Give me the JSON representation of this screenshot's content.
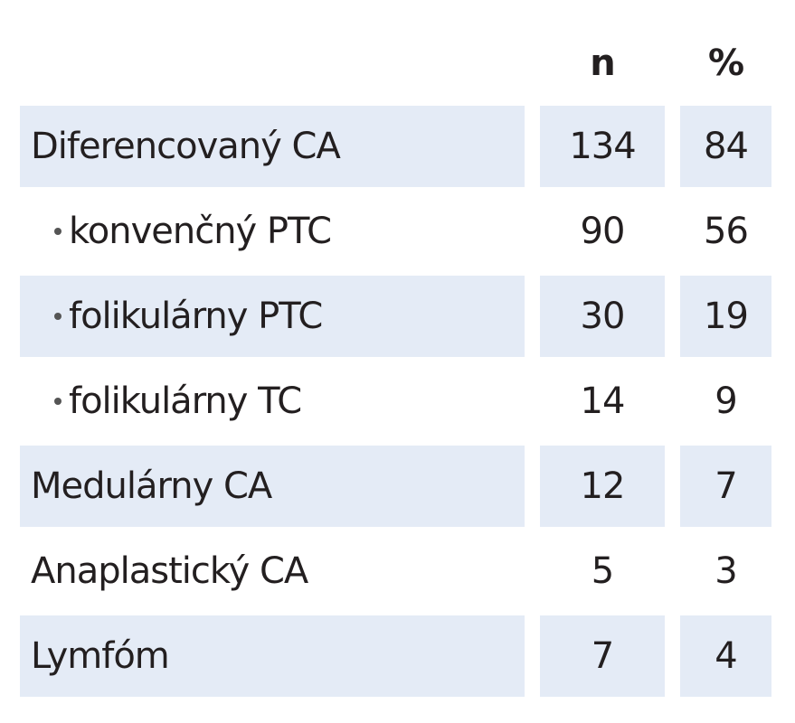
{
  "table": {
    "columns": [
      "n",
      "%"
    ],
    "rows": [
      {
        "label": "Diferencovaný CA",
        "n": 134,
        "percent": 84,
        "indent": false
      },
      {
        "label": "konvenčný PTC",
        "n": 90,
        "percent": 56,
        "indent": true
      },
      {
        "label": "folikulárny PTC",
        "n": 30,
        "percent": 19,
        "indent": true
      },
      {
        "label": "folikulárny TC",
        "n": 14,
        "percent": 9,
        "indent": true
      },
      {
        "label": "Medulárny CA",
        "n": 12,
        "percent": 7,
        "indent": false
      },
      {
        "label": "Anaplastický CA",
        "n": 5,
        "percent": 3,
        "indent": false
      },
      {
        "label": "Lymfóm",
        "n": 7,
        "percent": 4,
        "indent": false
      }
    ]
  }
}
